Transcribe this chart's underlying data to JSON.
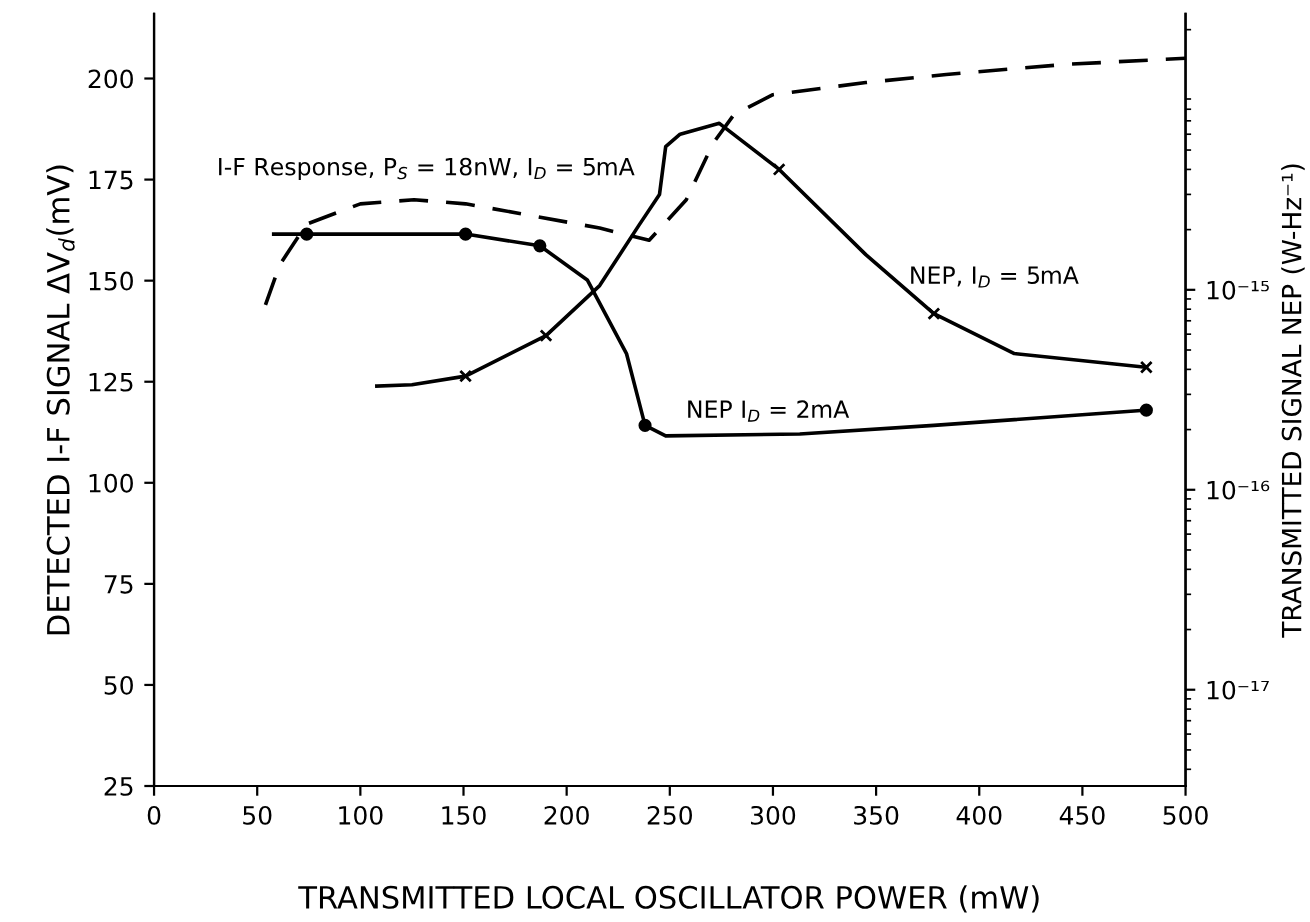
{
  "chart_data": {
    "type": "line",
    "xlabel": "TRANSMITTED LOCAL OSCILLATOR POWER (mW)",
    "ylabel": "DETECTED I-F SIGNAL ΔV$_{d}$(mV)",
    "y2label": "TRANSMITTED SIGNAL NEP (W-Hz⁻¹)",
    "xlim": [
      0,
      500
    ],
    "xticks": [
      0,
      50,
      100,
      150,
      200,
      250,
      300,
      350,
      400,
      450,
      500
    ],
    "ylim": [
      25,
      216
    ],
    "yticks": [
      25,
      50,
      75,
      100,
      125,
      150,
      175,
      200
    ],
    "y2lim": [
      3.3e-18,
      2.4e-14
    ],
    "log": "y2",
    "y2ticks": [
      {
        "value": 1e-17,
        "label": "10⁻¹⁷"
      },
      {
        "value": 1e-16,
        "label": "10⁻¹⁶"
      },
      {
        "value": 1e-15,
        "label": "10⁻¹⁵"
      }
    ],
    "grid": false,
    "legend": false,
    "series": [
      {
        "name": "I-F Response, P$_{S}$ = 18nW, I$_{D}$ = 5mA",
        "color": "#000000",
        "line_style": "dashed",
        "x": [
          54,
          61,
          74,
          100,
          126,
          151,
          184,
          216,
          240,
          258,
          271,
          281,
          300,
          345,
          384,
          442,
          500
        ],
        "values": [
          144,
          154,
          164,
          169,
          170,
          169,
          166,
          163,
          160,
          170,
          184,
          191,
          196,
          199,
          201,
          203.5,
          205
        ]
      },
      {
        "name": "NEP, I$_{D}$ = 5mA",
        "color": "#000000",
        "axis": "y2",
        "x": [
          108,
          125,
          151,
          190,
          216,
          235,
          245,
          248,
          255,
          274,
          303,
          345,
          378,
          417,
          481
        ],
        "values": [
          3.3e-16,
          3.35e-16,
          3.7e-16,
          5.9e-16,
          1.05e-15,
          2.1e-15,
          3e-15,
          5.2e-15,
          6e-15,
          6.8e-15,
          4e-15,
          1.5e-15,
          7.6e-16,
          4.8e-16,
          4.1e-16
        ]
      },
      {
        "name": "NEP I$_{D}$ = 2mA",
        "color": "#000000",
        "axis": "y2",
        "x": [
          58,
          74,
          151,
          187,
          210,
          229,
          238,
          248,
          313,
          378,
          481
        ],
        "values": [
          1.9e-15,
          1.9e-15,
          1.9e-15,
          1.66e-15,
          1.12e-15,
          4.8e-16,
          2.1e-16,
          1.86e-16,
          1.9e-16,
          2.1e-16,
          2.5e-16
        ]
      },
      {
        "type": "scatter",
        "marker": "cross",
        "color": "#000000",
        "axis": "y2",
        "x": [
          151,
          190,
          303,
          378,
          481
        ],
        "values": [
          3.7e-16,
          5.9e-16,
          4e-15,
          7.6e-16,
          4.1e-16
        ]
      },
      {
        "type": "scatter",
        "marker": "circle",
        "color": "#000000",
        "axis": "y2",
        "x": [
          74,
          151,
          187,
          238,
          481
        ],
        "values": [
          1.9e-15,
          1.9e-15,
          1.66e-15,
          2.1e-16,
          2.5e-16
        ]
      }
    ]
  }
}
